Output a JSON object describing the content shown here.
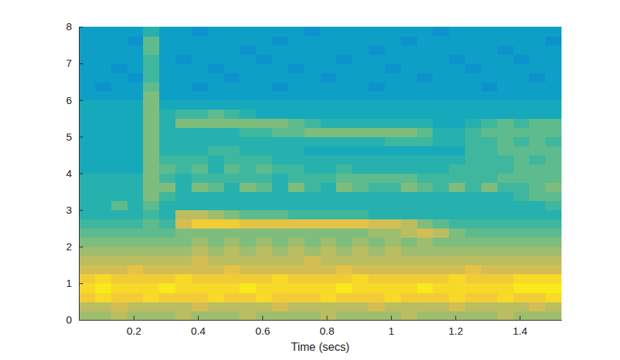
{
  "chart_data": {
    "type": "heatmap",
    "xlabel": "Time (secs)",
    "xlim": [
      0.03,
      1.53
    ],
    "ylim": [
      0,
      8
    ],
    "xticks": [
      0.2,
      0.4,
      0.6,
      0.8,
      1,
      1.2,
      1.4
    ],
    "yticks": [
      0,
      1,
      2,
      3,
      4,
      5,
      6,
      7,
      8
    ],
    "zlim": [
      0,
      10
    ],
    "x": [
      0.03,
      0.08,
      0.13,
      0.18,
      0.23,
      0.28,
      0.33,
      0.38,
      0.43,
      0.48,
      0.53,
      0.58,
      0.63,
      0.68,
      0.73,
      0.78,
      0.83,
      0.88,
      0.93,
      0.98,
      1.03,
      1.08,
      1.13,
      1.18,
      1.23,
      1.28,
      1.33,
      1.38,
      1.43,
      1.48,
      1.53
    ],
    "y": [
      0,
      0.25,
      0.5,
      0.75,
      1,
      1.25,
      1.5,
      1.75,
      2,
      2.25,
      2.5,
      2.75,
      3,
      3.25,
      3.5,
      3.75,
      4,
      4.25,
      4.5,
      4.75,
      5,
      5.25,
      5.5,
      5.75,
      6,
      6.25,
      6.5,
      6.75,
      7,
      7.25,
      7.5,
      7.75,
      8
    ],
    "values": [
      [
        6.5,
        6.5,
        7,
        6.5,
        6.5,
        6.5,
        7,
        6.5,
        6.5,
        6.5,
        7,
        6.5,
        6.5,
        6.5,
        6.5,
        7,
        6.5,
        6.5,
        6.5,
        6.5,
        7,
        6.5,
        6.5,
        6.5,
        6.5,
        6.5,
        7,
        6.5,
        6.5,
        6.5
      ],
      [
        7,
        7,
        7.5,
        7,
        7,
        7,
        7,
        7.5,
        7,
        7,
        7,
        7,
        7.5,
        7,
        7,
        7,
        7,
        7,
        7.5,
        7,
        7,
        7,
        7,
        7.5,
        7,
        7,
        7,
        7,
        7.5,
        7
      ],
      [
        8.5,
        9,
        8.5,
        8.5,
        9,
        8.5,
        8.5,
        8.5,
        9,
        8.5,
        8.5,
        9,
        8.5,
        8.5,
        8.5,
        9,
        8.5,
        8.5,
        8.5,
        9,
        8.5,
        8.5,
        8.5,
        9,
        8.5,
        8.5,
        9,
        8.5,
        8.5,
        9
      ],
      [
        9,
        9.5,
        9,
        9,
        9,
        9.5,
        9,
        9,
        9,
        9,
        9.5,
        9,
        9,
        9,
        9,
        9,
        9.5,
        9,
        9,
        9,
        9,
        9.5,
        9,
        9,
        9,
        9,
        9,
        9.5,
        9.5,
        9.5
      ],
      [
        8.5,
        9,
        8.5,
        8.5,
        8.5,
        8.5,
        9,
        8.5,
        8.5,
        8.5,
        8.5,
        8.5,
        9,
        8.5,
        8.5,
        8.5,
        8.5,
        9,
        8.5,
        8.5,
        8.5,
        8.5,
        8.5,
        9,
        8.5,
        8.5,
        8.5,
        9,
        9,
        9
      ],
      [
        7.5,
        7.5,
        7.5,
        8,
        7.5,
        7.5,
        7.5,
        7.5,
        7.5,
        8,
        7.5,
        7.5,
        7.5,
        7.5,
        7.5,
        7.5,
        8,
        7.5,
        7.5,
        7.5,
        7.5,
        7.5,
        7.5,
        7.5,
        8,
        7.5,
        7.5,
        7.5,
        7.5,
        7.5
      ],
      [
        7,
        7,
        7,
        7,
        7,
        7,
        7,
        7.5,
        7,
        7,
        7,
        7,
        7,
        7,
        7.5,
        7,
        7,
        7,
        7,
        7,
        7,
        7,
        7,
        7,
        7,
        7,
        7,
        7,
        7,
        7
      ],
      [
        6.5,
        6.5,
        6.5,
        6.5,
        6.5,
        6.5,
        6.5,
        7,
        6.5,
        7,
        6.5,
        7,
        6.5,
        7,
        6.5,
        7,
        6.5,
        7,
        6.5,
        7,
        6.5,
        6.5,
        6.5,
        6.5,
        6.5,
        6.5,
        6.5,
        6.5,
        6.5,
        6.5
      ],
      [
        6,
        6,
        6,
        6,
        6,
        6,
        6,
        6.5,
        6,
        6.5,
        6,
        6.5,
        6,
        6.5,
        6,
        6.5,
        6,
        6.5,
        6,
        6.5,
        6,
        6.5,
        6,
        6,
        6,
        6,
        6,
        6,
        6,
        6
      ],
      [
        5.5,
        5.5,
        5.5,
        5.5,
        5.5,
        5.5,
        6,
        6,
        6,
        6,
        6,
        6,
        6,
        6,
        6,
        6,
        6,
        6,
        6.5,
        6.5,
        7,
        7.5,
        7,
        6,
        5.5,
        5.5,
        5.5,
        5.5,
        5.5,
        5.5
      ],
      [
        5,
        5,
        5,
        5,
        5.5,
        5,
        7.5,
        8.5,
        8.5,
        8.5,
        8,
        8,
        8,
        8,
        8,
        8,
        8,
        8,
        7.5,
        7.5,
        7,
        6,
        5.5,
        5,
        5,
        5,
        5,
        5,
        5,
        5
      ],
      [
        4.5,
        4.5,
        4.5,
        4.5,
        5,
        4.5,
        7,
        7,
        6.5,
        6,
        5.5,
        5.5,
        5.5,
        5,
        5,
        5,
        5,
        5,
        4.5,
        4.5,
        4.5,
        4.5,
        4.5,
        4.5,
        4.5,
        4.5,
        4.5,
        4.5,
        4.5,
        4.5
      ],
      [
        4.5,
        4.5,
        5.5,
        4.5,
        5.5,
        4.5,
        4.5,
        4.5,
        4.5,
        4.5,
        4.5,
        4.5,
        4.5,
        4.5,
        4.5,
        4.5,
        4.5,
        4.5,
        4.5,
        4.5,
        4.5,
        4.5,
        4.5,
        4.5,
        4.5,
        4.5,
        4.5,
        4.5,
        4.5,
        5
      ],
      [
        4.5,
        4.5,
        4.5,
        4.5,
        6,
        5,
        4.5,
        4.5,
        4.5,
        4.5,
        4.5,
        4.5,
        4.5,
        4.5,
        4.5,
        4.5,
        4.5,
        4.5,
        4.5,
        4.5,
        4.5,
        4.5,
        4.5,
        4.5,
        4.5,
        4.5,
        4.5,
        5,
        5.5,
        5.5
      ],
      [
        4.5,
        4.5,
        4.5,
        4.5,
        6,
        6,
        4.5,
        6,
        5.5,
        4.5,
        6,
        5.5,
        4.5,
        6,
        5,
        4.5,
        6,
        5.5,
        5,
        5,
        6,
        5.5,
        5,
        6,
        5,
        6,
        5,
        5,
        5.5,
        6
      ],
      [
        4.5,
        4.5,
        4.5,
        4.5,
        6,
        5,
        4.5,
        5,
        5,
        5,
        5,
        5,
        4.5,
        5,
        5,
        5,
        5.5,
        5.5,
        5.5,
        5.5,
        5.5,
        5,
        5,
        5,
        5,
        5,
        5.5,
        5.5,
        5.5,
        5.5
      ],
      [
        4,
        4,
        4,
        4,
        6,
        5.5,
        5,
        5.5,
        4.5,
        5.5,
        5,
        5.5,
        5,
        5,
        4.5,
        4.5,
        5,
        4.5,
        4.5,
        4.5,
        4.5,
        4.5,
        4.5,
        5,
        5,
        5,
        5,
        5.5,
        5.5,
        5.5
      ],
      [
        4,
        4,
        4,
        4,
        6,
        5,
        5,
        5,
        4.5,
        5,
        5,
        5,
        4.5,
        4.5,
        4.5,
        4.5,
        4.5,
        4.5,
        4.5,
        4.5,
        4.5,
        4.5,
        4.5,
        4.5,
        5,
        5,
        5,
        5.5,
        5,
        5.5
      ],
      [
        4,
        4,
        4,
        4,
        6,
        4.5,
        4.5,
        4.5,
        5,
        5,
        4.5,
        4.5,
        4.5,
        4.5,
        4,
        4,
        4,
        4,
        4,
        4,
        4,
        4,
        4,
        4,
        5,
        5,
        5.5,
        5.5,
        5.5,
        5.5
      ],
      [
        4,
        4,
        4,
        4,
        6,
        4.5,
        4.5,
        4.5,
        4.5,
        4.5,
        4.5,
        4.5,
        4.5,
        4.5,
        4.5,
        4.5,
        4.5,
        4.5,
        4.5,
        5,
        5,
        5,
        4.5,
        4.5,
        5,
        5,
        5.5,
        5,
        5.5,
        5
      ],
      [
        4,
        4,
        4,
        4,
        6,
        4.5,
        4.5,
        4.5,
        4.5,
        4.5,
        5,
        5,
        5.5,
        5.5,
        6,
        6,
        6,
        6,
        6,
        6,
        6,
        5.5,
        4.5,
        4.5,
        5,
        5.5,
        5.5,
        5.5,
        5.5,
        5.5
      ],
      [
        4,
        4,
        4,
        4,
        6,
        4.5,
        6,
        6,
        6,
        6,
        6,
        6,
        6,
        5.5,
        5,
        4.5,
        4.5,
        4.5,
        4.5,
        4.5,
        4.5,
        4.5,
        4,
        4,
        4.5,
        5,
        5.5,
        5,
        5.5,
        5.5
      ],
      [
        4,
        4,
        4,
        4,
        6,
        4.5,
        5,
        5,
        5.5,
        5,
        4.5,
        4,
        4,
        4,
        4,
        4,
        4,
        4,
        4,
        4,
        4,
        4,
        4,
        4,
        4,
        4,
        4,
        4,
        4,
        4
      ],
      [
        4,
        4,
        4,
        4,
        6,
        4,
        4,
        4,
        4,
        4,
        4,
        4,
        4,
        4,
        4,
        4,
        4,
        4,
        4,
        4,
        4,
        4,
        4,
        4,
        4,
        4,
        4,
        4,
        4,
        4
      ],
      [
        3.5,
        3.5,
        3.5,
        3.5,
        6,
        3.5,
        3.5,
        3.5,
        3.5,
        3.5,
        3.5,
        3.5,
        3.5,
        3.5,
        3.5,
        3.5,
        3.5,
        3.5,
        3.5,
        3.5,
        3.5,
        3.5,
        3.5,
        3.5,
        3.5,
        3.5,
        3.5,
        3.5,
        3.5,
        3.5
      ],
      [
        3.5,
        3,
        3.5,
        3.5,
        5.5,
        3.5,
        3.5,
        3,
        3.5,
        3.5,
        3.5,
        3.5,
        3,
        3.5,
        3.5,
        3.5,
        3.5,
        3.5,
        3,
        3.5,
        3.5,
        3.5,
        3.5,
        3.5,
        3.5,
        3,
        3.5,
        3.5,
        3.5,
        3.5
      ],
      [
        3.5,
        3.5,
        3.5,
        3,
        5,
        3.5,
        3.5,
        3.5,
        3.5,
        3,
        3.5,
        3.5,
        3.5,
        3.5,
        3.5,
        3,
        3.5,
        3.5,
        3.5,
        3.5,
        3.5,
        3,
        3.5,
        3.5,
        3.5,
        3.5,
        3.5,
        3.5,
        3,
        3.5
      ],
      [
        3.5,
        3.5,
        3,
        3.5,
        5,
        3.5,
        3.5,
        3.5,
        3,
        3.5,
        3.5,
        3.5,
        3.5,
        3,
        3.5,
        3.5,
        3.5,
        3.5,
        3.5,
        3,
        3.5,
        3.5,
        3.5,
        3.5,
        3,
        3.5,
        3.5,
        3.5,
        3.5,
        3.5
      ],
      [
        3.5,
        3.5,
        3.5,
        3.5,
        5,
        3.5,
        3,
        3.5,
        3.5,
        3.5,
        3.5,
        3,
        3.5,
        3.5,
        3.5,
        3.5,
        3,
        3.5,
        3.5,
        3.5,
        3.5,
        3.5,
        3.5,
        3,
        3.5,
        3.5,
        3.5,
        3,
        3.5,
        3.5
      ],
      [
        3.5,
        3.5,
        3.5,
        3.5,
        5.5,
        3.5,
        3.5,
        3.5,
        3.5,
        3.5,
        3,
        3.5,
        3.5,
        3.5,
        3.5,
        3.5,
        3.5,
        3.5,
        3,
        3.5,
        3.5,
        3.5,
        3.5,
        3.5,
        3.5,
        3.5,
        3,
        3.5,
        3.5,
        3.5
      ],
      [
        3.5,
        3.5,
        3.5,
        3,
        5.5,
        3.5,
        3.5,
        3.5,
        3.5,
        3.5,
        3.5,
        3.5,
        3,
        3.5,
        3.5,
        3.5,
        3.5,
        3.5,
        3.5,
        3.5,
        3,
        3.5,
        3.5,
        3.5,
        3.5,
        3.5,
        3.5,
        3.5,
        3.5,
        3
      ],
      [
        3.5,
        3.5,
        3.5,
        3.5,
        4.5,
        3.5,
        3.5,
        3,
        3.5,
        3.5,
        3.5,
        3.5,
        3.5,
        3.5,
        3,
        3.5,
        3.5,
        3.5,
        3.5,
        3.5,
        3.5,
        3.5,
        3,
        3.5,
        3.5,
        3.5,
        3.5,
        3.5,
        3.5,
        3.5
      ]
    ]
  }
}
